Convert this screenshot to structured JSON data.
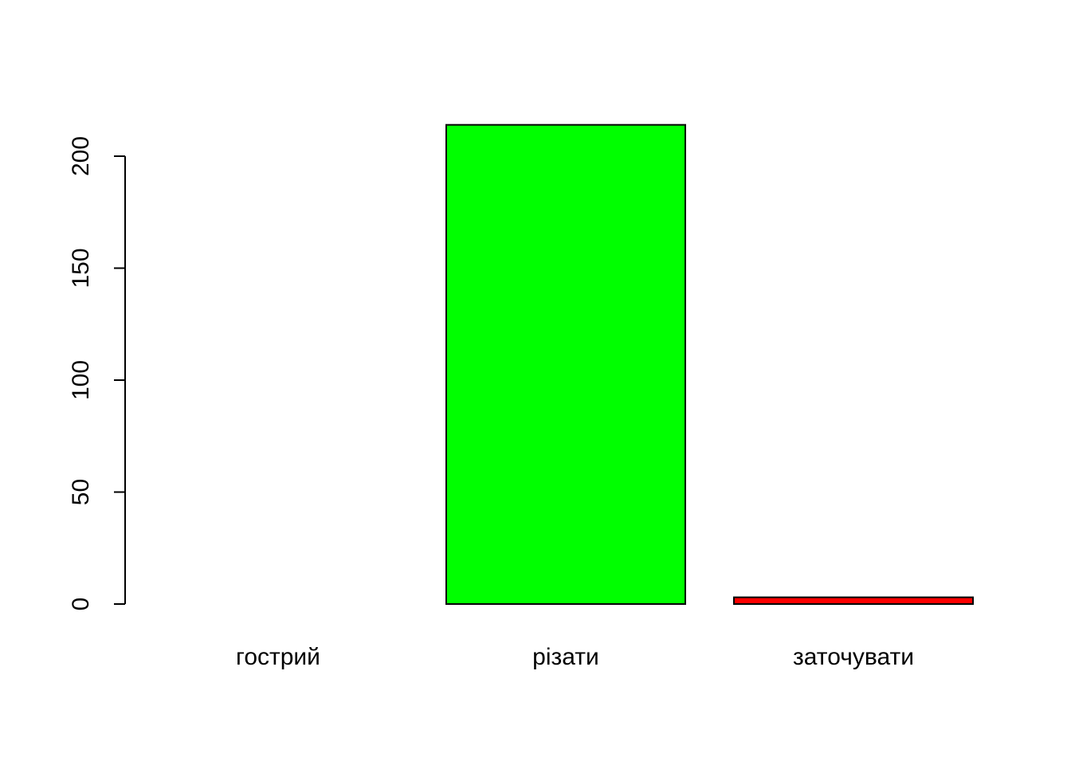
{
  "chart_data": {
    "type": "bar",
    "title": "",
    "xlabel": "",
    "ylabel": "",
    "categories": [
      "гострий",
      "різати",
      "заточувати"
    ],
    "values": [
      0,
      214,
      3
    ],
    "colors": [
      "#FFFFFF",
      "#00FF00",
      "#FF0000"
    ],
    "ylim": [
      0,
      214
    ],
    "yticks": [
      0,
      50,
      100,
      150,
      200
    ],
    "ytick_labels": [
      "0",
      "50",
      "100",
      "150",
      "200"
    ],
    "grid": false,
    "legend": "none"
  }
}
